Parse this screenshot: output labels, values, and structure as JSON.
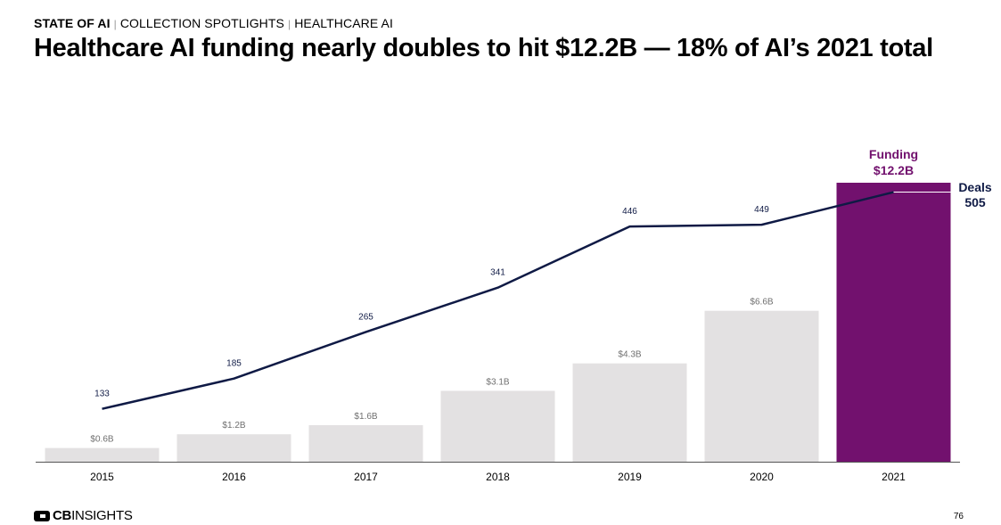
{
  "header": {
    "breadcrumbs": [
      "STATE OF AI",
      "COLLECTION SPOTLIGHTS",
      "HEALTHCARE AI"
    ],
    "title": "Healthcare AI funding nearly doubles to hit $12.2B — 18% of AI’s 2021 total"
  },
  "footer": {
    "logo_bold": "CB",
    "logo_rest": "INSIGHTS",
    "page_number": "76"
  },
  "colors": {
    "bar": "#e3e1e2",
    "bar_highlight": "#72116e",
    "line": "#0f1a45",
    "bar_label": "#6f6f6f",
    "axis": "#555555"
  },
  "chart_data": {
    "type": "bar",
    "categories": [
      "2015",
      "2016",
      "2017",
      "2018",
      "2019",
      "2020",
      "2021"
    ],
    "series": [
      {
        "kind": "bar",
        "values": [
          0.6,
          1.2,
          1.6,
          3.1,
          4.3,
          6.6,
          12.2
        ],
        "labels": [
          "$0.6B",
          "$1.2B",
          "$1.6B",
          "$3.1B",
          "$4.3B",
          "$6.6B",
          "$12.2B"
        ]
      },
      {
        "kind": "line",
        "values": [
          133,
          185,
          265,
          341,
          446,
          449,
          505
        ],
        "labels": [
          "133",
          "185",
          "265",
          "341",
          "446",
          "449",
          "505"
        ]
      }
    ],
    "annotations": {
      "funding_label": "Funding",
      "funding_value": "$12.2B",
      "deals_label": "Deals",
      "deals_value": "505"
    },
    "highlight_index": 6,
    "grid": false,
    "legend": "none"
  }
}
